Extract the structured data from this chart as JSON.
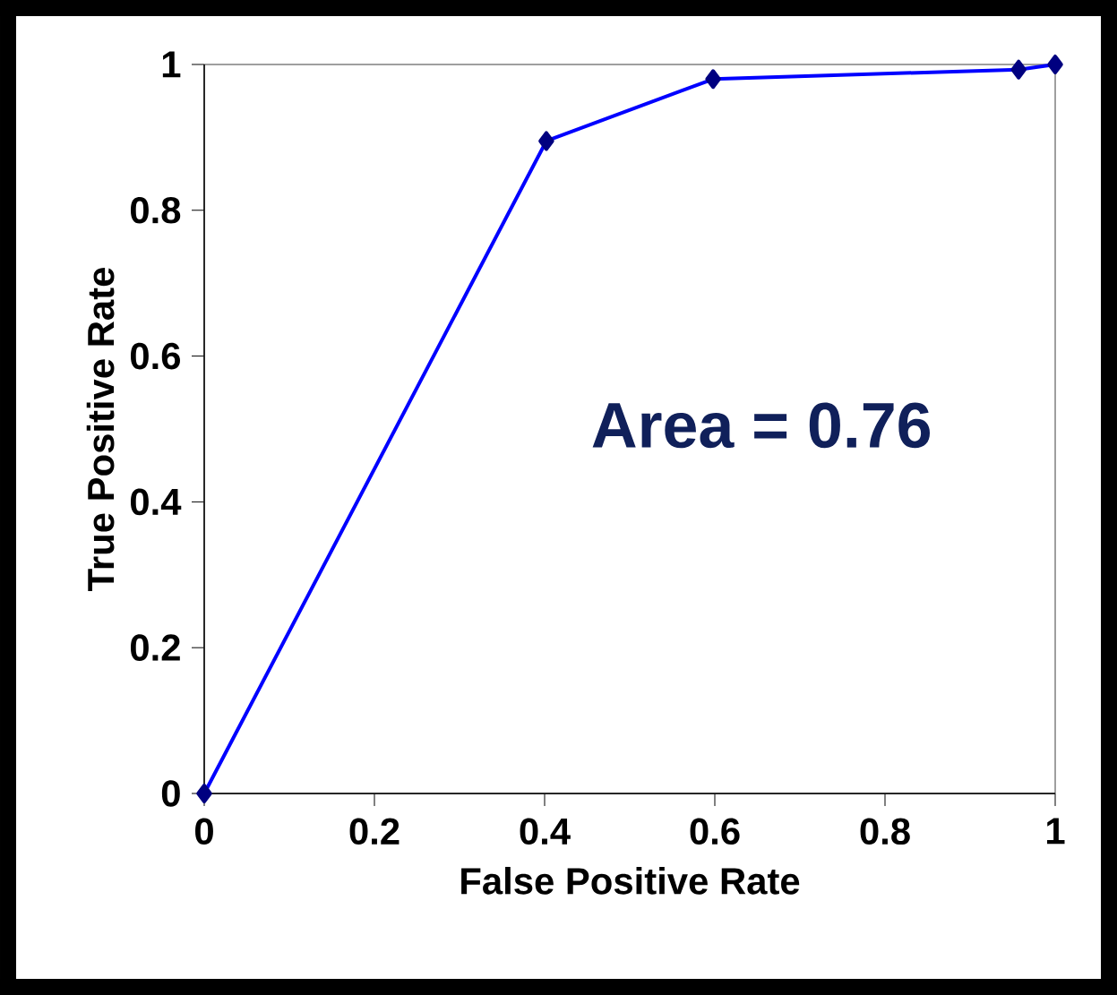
{
  "chart_data": {
    "type": "line",
    "xlabel": "False Positive Rate",
    "ylabel": "True Positive Rate",
    "x": [
      0,
      0.402,
      0.598,
      0.957,
      1
    ],
    "series": [
      {
        "color": "#0000ff",
        "values": [
          0,
          0.895,
          0.98,
          0.993,
          1
        ]
      }
    ],
    "marker": "diamond",
    "line_style": "solid",
    "xlim": [
      0,
      1
    ],
    "ylim": [
      0,
      1
    ],
    "xticks": [
      0,
      0.2,
      0.4,
      0.6,
      0.8,
      1
    ],
    "yticks": [
      0,
      0.2,
      0.4,
      0.6,
      0.8,
      1
    ],
    "annotations": [
      "Area = 0.76"
    ]
  }
}
